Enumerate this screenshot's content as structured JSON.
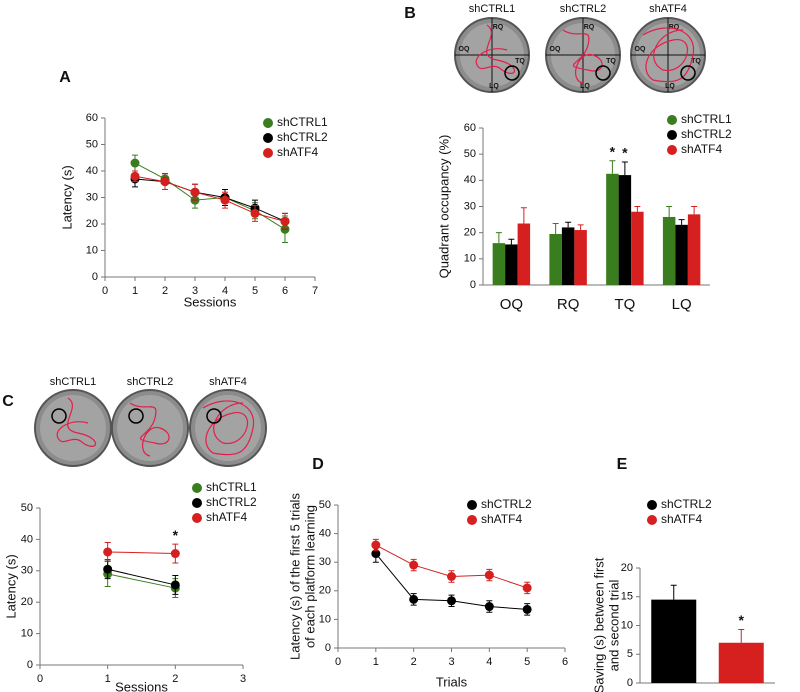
{
  "chart_data": [
    {
      "type": "line",
      "panel": "A",
      "xlabel": "Sessions",
      "ylabel": [
        "Latency (s)"
      ],
      "x": [
        1,
        2,
        3,
        4,
        5,
        6
      ],
      "xlim": [
        0,
        7
      ],
      "xticks": [
        0,
        1,
        2,
        3,
        4,
        5,
        6,
        7
      ],
      "ylim": [
        0,
        60
      ],
      "yticks": [
        0,
        10,
        20,
        30,
        40,
        50,
        60
      ],
      "legend": "upper right",
      "series": [
        {
          "name": "shCTRL1",
          "color": "#3a7d1e",
          "values": [
            43,
            37,
            29,
            30,
            25,
            18
          ],
          "errors": [
            3,
            2,
            3,
            3,
            3,
            5
          ]
        },
        {
          "name": "shCTRL2",
          "color": "#000000",
          "values": [
            37,
            36,
            32,
            30,
            26,
            21
          ],
          "errors": [
            3,
            3,
            3,
            3,
            3,
            3
          ]
        },
        {
          "name": "shATF4",
          "color": "#d62020",
          "values": [
            38,
            36,
            32,
            29,
            24,
            21
          ],
          "errors": [
            2,
            3,
            3,
            3,
            3,
            3
          ]
        }
      ]
    },
    {
      "type": "bar",
      "panel": "B",
      "ylabel": [
        "Quadrant occupancy (%)"
      ],
      "photos": [
        "shCTRL1",
        "shCTRL2",
        "shATF4"
      ],
      "photo_quadrants": [
        "RQ",
        "OQ",
        "TQ",
        "LQ"
      ],
      "categories": [
        "OQ",
        "RQ",
        "TQ",
        "LQ"
      ],
      "ylim": [
        0,
        60
      ],
      "yticks": [
        0,
        10,
        20,
        30,
        40,
        50,
        60
      ],
      "legend": "upper right",
      "series": [
        {
          "name": "shCTRL1",
          "color": "#3a7d1e",
          "values": [
            16,
            19.5,
            42.5,
            26
          ],
          "errors": [
            4,
            4,
            5,
            4
          ],
          "annotations": [
            null,
            null,
            "*",
            null
          ]
        },
        {
          "name": "shCTRL2",
          "color": "#000000",
          "values": [
            15.5,
            22,
            42,
            23
          ],
          "errors": [
            2,
            2,
            5,
            2
          ],
          "annotations": [
            null,
            null,
            "*",
            null
          ]
        },
        {
          "name": "shATF4",
          "color": "#d62020",
          "values": [
            23.5,
            21,
            28,
            27
          ],
          "errors": [
            6,
            2,
            2,
            3
          ],
          "annotations": [
            null,
            null,
            null,
            null
          ]
        }
      ]
    },
    {
      "type": "line",
      "panel": "C",
      "xlabel": "Sessions",
      "ylabel": [
        "Latency (s)"
      ],
      "photos": [
        "shCTRL1",
        "shCTRL2",
        "shATF4"
      ],
      "x": [
        1,
        2
      ],
      "xlim": [
        0,
        3
      ],
      "xticks": [
        0,
        1,
        2,
        3
      ],
      "ylim": [
        0,
        50
      ],
      "yticks": [
        0,
        10,
        20,
        30,
        40,
        50
      ],
      "legend": "upper right",
      "series": [
        {
          "name": "shCTRL1",
          "color": "#3a7d1e",
          "values": [
            29,
            24.5
          ],
          "errors": [
            4,
            3
          ]
        },
        {
          "name": "shCTRL2",
          "color": "#000000",
          "values": [
            30.5,
            25.5
          ],
          "errors": [
            3,
            3
          ]
        },
        {
          "name": "shATF4",
          "color": "#d62020",
          "values": [
            36,
            35.5
          ],
          "errors": [
            3,
            3
          ],
          "annotations": [
            null,
            "*"
          ]
        }
      ]
    },
    {
      "type": "line",
      "panel": "D",
      "xlabel": "Trials",
      "ylabel": [
        "Latency (s) of the first 5 trials",
        "of each platform learning"
      ],
      "x": [
        1,
        2,
        3,
        4,
        5
      ],
      "xlim": [
        0,
        6
      ],
      "xticks": [
        0,
        1,
        2,
        3,
        4,
        5,
        6
      ],
      "ylim": [
        0,
        50
      ],
      "yticks": [
        0,
        10,
        20,
        30,
        40,
        50
      ],
      "legend": "upper right",
      "series": [
        {
          "name": "shCTRL2",
          "color": "#000000",
          "values": [
            33,
            17,
            16.5,
            14.5,
            13.5
          ],
          "errors": [
            3,
            2,
            2,
            2,
            2
          ]
        },
        {
          "name": "shATF4",
          "color": "#d62020",
          "values": [
            36,
            29,
            25,
            25.5,
            21
          ],
          "errors": [
            2,
            2,
            2,
            2,
            2
          ]
        }
      ]
    },
    {
      "type": "bar",
      "panel": "E",
      "ylabel": [
        "Saving (s) between first",
        "and second trial"
      ],
      "categories": [
        null
      ],
      "ylim": [
        0,
        20
      ],
      "yticks": [
        0,
        5,
        10,
        15,
        20
      ],
      "legend": "upper left",
      "series": [
        {
          "name": "shCTRL2",
          "color": "#000000",
          "values": [
            14.5
          ],
          "errors": [
            2.5
          ]
        },
        {
          "name": "shATF4",
          "color": "#d62020",
          "values": [
            7
          ],
          "errors": [
            2.3
          ],
          "annotations": [
            "*"
          ]
        }
      ]
    }
  ]
}
